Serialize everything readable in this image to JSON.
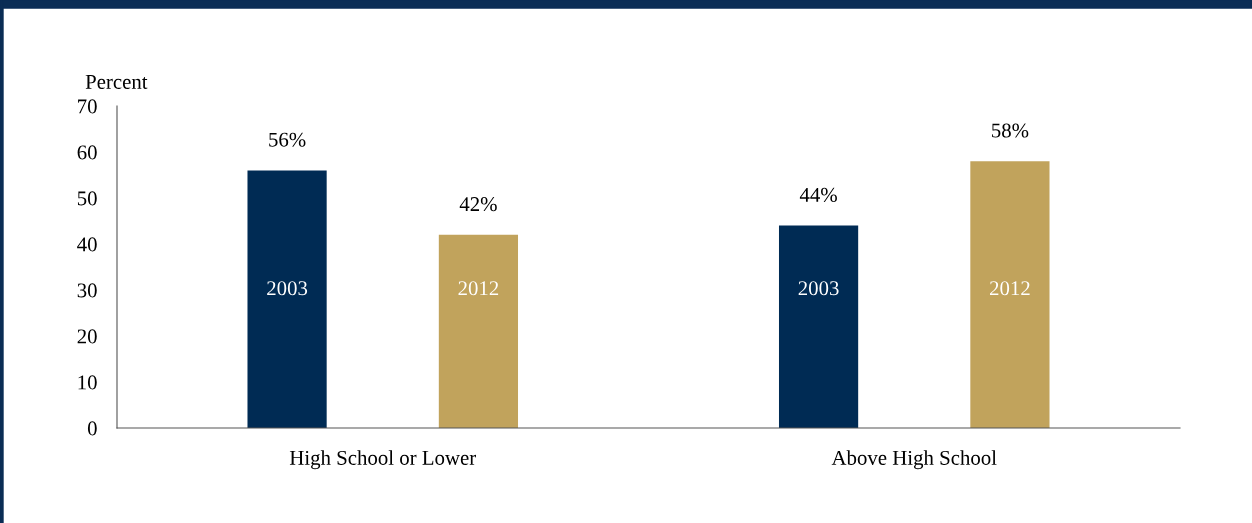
{
  "chart_data": {
    "type": "bar",
    "ylabel": "Percent",
    "categories": [
      "High School or Lower",
      "Above High School"
    ],
    "series": [
      {
        "name": "2003",
        "color": "#002b54",
        "values": [
          56,
          44
        ],
        "value_labels": [
          "56%",
          "44%"
        ]
      },
      {
        "name": "2012",
        "color": "#c1a35c",
        "values": [
          42,
          58
        ],
        "value_labels": [
          "42%",
          "58%"
        ]
      }
    ],
    "ylim": [
      0,
      70
    ],
    "yticks": [
      0,
      10,
      20,
      30,
      40,
      50,
      60,
      70
    ],
    "grid": false,
    "legend": false
  }
}
